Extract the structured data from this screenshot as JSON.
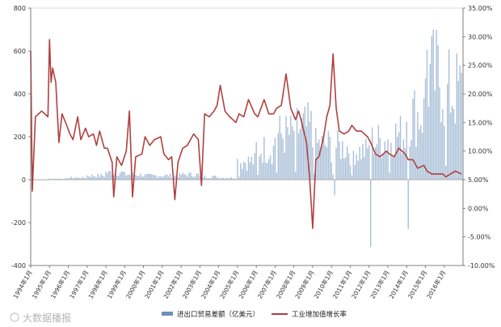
{
  "chart_data": {
    "type": "bar+line",
    "yleft": {
      "ylim": [
        -400,
        800
      ],
      "ticks": [
        "-400",
        "-200",
        "0",
        "200",
        "400",
        "600",
        "800"
      ]
    },
    "yright": {
      "ylim": [
        -10,
        35
      ],
      "ticks": [
        "-10.00%",
        "-5.00%",
        "0.00%",
        "5.00%",
        "10.00%",
        "15.00%",
        "20.00%",
        "25.00%",
        "30.00%",
        "35.00%"
      ]
    },
    "x_start": "1994-01",
    "x_end": "2016-12",
    "x_ticks": [
      "1994年1月",
      "1995年1月",
      "1996年1月",
      "1997年1月",
      "1998年1月",
      "1999年1月",
      "2000年1月",
      "2001年1月",
      "2002年1月",
      "2003年1月",
      "2004年1月",
      "2005年1月",
      "2006年1月",
      "2007年1月",
      "2008年1月",
      "2009年1月",
      "2010年1月",
      "2011年1月",
      "2012年1月",
      "2013年1月",
      "2014年1月",
      "2015年1月",
      "2016年1月"
    ],
    "series": [
      {
        "name": "进出口贸易差额（亿美元）",
        "type": "bar",
        "axis": "left",
        "color": "#a9bfd8",
        "annual_profile": [
          [
            1994,
            0
          ],
          [
            1995,
            5
          ],
          [
            1996,
            10
          ],
          [
            1997,
            20
          ],
          [
            1998,
            35
          ],
          [
            1999,
            25
          ],
          [
            2000,
            20
          ],
          [
            2001,
            20
          ],
          [
            2002,
            25
          ],
          [
            2003,
            15
          ],
          [
            2004,
            10
          ],
          [
            2005,
            90
          ],
          [
            2006,
            150
          ],
          [
            2007,
            220
          ],
          [
            2008,
            250
          ],
          [
            2009,
            170
          ],
          [
            2010,
            160
          ],
          [
            2011,
            140
          ],
          [
            2012,
            190
          ],
          [
            2013,
            220
          ],
          [
            2014,
            320
          ],
          [
            2015,
            500
          ],
          [
            2016,
            430
          ]
        ],
        "notable": [
          {
            "date": "2010-03",
            "value": -72
          },
          {
            "date": "2012-02",
            "value": -315
          },
          {
            "date": "2014-02",
            "value": -230
          },
          {
            "date": "2015-02",
            "value": 605
          }
        ]
      },
      {
        "name": "工业增加值增长率",
        "type": "line",
        "axis": "right",
        "color": "#b04040",
        "points": [
          [
            "1994-01",
            27.5
          ],
          [
            "1994-02",
            3.0
          ],
          [
            "1994-04",
            16.0
          ],
          [
            "1994-08",
            17.0
          ],
          [
            "1994-12",
            16.0
          ],
          [
            "1995-01",
            29.5
          ],
          [
            "1995-02",
            22.0
          ],
          [
            "1995-03",
            24.5
          ],
          [
            "1995-05",
            22.0
          ],
          [
            "1995-07",
            11.5
          ],
          [
            "1995-09",
            16.5
          ],
          [
            "1995-12",
            14.5
          ],
          [
            "1996-02",
            13.0
          ],
          [
            "1996-04",
            12.0
          ],
          [
            "1996-07",
            16.0
          ],
          [
            "1996-09",
            12.0
          ],
          [
            "1996-12",
            14.0
          ],
          [
            "1997-02",
            12.5
          ],
          [
            "1997-05",
            13.0
          ],
          [
            "1997-07",
            11.0
          ],
          [
            "1997-09",
            13.5
          ],
          [
            "1997-12",
            10.5
          ],
          [
            "1998-02",
            10.5
          ],
          [
            "1998-05",
            8.0
          ],
          [
            "1998-06",
            2.0
          ],
          [
            "1998-08",
            9.0
          ],
          [
            "1998-11",
            7.5
          ],
          [
            "1999-02",
            10.0
          ],
          [
            "1999-04",
            17.0
          ],
          [
            "1999-06",
            2.0
          ],
          [
            "1999-08",
            9.0
          ],
          [
            "1999-12",
            9.5
          ],
          [
            "2000-02",
            12.5
          ],
          [
            "2000-05",
            11.0
          ],
          [
            "2000-08",
            12.0
          ],
          [
            "2000-12",
            12.5
          ],
          [
            "2001-02",
            9.5
          ],
          [
            "2001-05",
            8.5
          ],
          [
            "2001-07",
            9.0
          ],
          [
            "2001-09",
            1.5
          ],
          [
            "2001-11",
            8.0
          ],
          [
            "2002-02",
            10.5
          ],
          [
            "2002-05",
            11.0
          ],
          [
            "2002-07",
            12.0
          ],
          [
            "2002-09",
            13.0
          ],
          [
            "2002-12",
            12.0
          ],
          [
            "2003-02",
            4.0
          ],
          [
            "2003-04",
            16.5
          ],
          [
            "2003-07",
            16.0
          ],
          [
            "2003-10",
            17.0
          ],
          [
            "2003-12",
            18.0
          ],
          [
            "2004-02",
            21.5
          ],
          [
            "2004-05",
            17.0
          ],
          [
            "2004-08",
            16.0
          ],
          [
            "2004-12",
            15.0
          ],
          [
            "2005-02",
            16.5
          ],
          [
            "2005-05",
            16.0
          ],
          [
            "2005-08",
            19.0
          ],
          [
            "2005-12",
            16.5
          ],
          [
            "2006-02",
            16.0
          ],
          [
            "2006-06",
            19.0
          ],
          [
            "2006-09",
            16.5
          ],
          [
            "2006-12",
            16.5
          ],
          [
            "2007-02",
            17.5
          ],
          [
            "2007-05",
            18.0
          ],
          [
            "2007-08",
            23.5
          ],
          [
            "2007-11",
            17.5
          ],
          [
            "2008-02",
            15.5
          ],
          [
            "2008-04",
            17.0
          ],
          [
            "2008-06",
            15.0
          ],
          [
            "2008-09",
            11.5
          ],
          [
            "2008-11",
            5.5
          ],
          [
            "2009-01",
            -3.5
          ],
          [
            "2009-03",
            8.5
          ],
          [
            "2009-05",
            9.0
          ],
          [
            "2009-08",
            12.5
          ],
          [
            "2009-10",
            16.0
          ],
          [
            "2009-12",
            18.0
          ],
          [
            "2010-02",
            27.0
          ],
          [
            "2010-04",
            17.5
          ],
          [
            "2010-06",
            13.5
          ],
          [
            "2010-09",
            13.0
          ],
          [
            "2010-12",
            13.5
          ],
          [
            "2011-02",
            14.5
          ],
          [
            "2011-05",
            13.5
          ],
          [
            "2011-08",
            13.5
          ],
          [
            "2011-12",
            12.5
          ],
          [
            "2012-02",
            11.5
          ],
          [
            "2012-05",
            9.5
          ],
          [
            "2012-08",
            9.0
          ],
          [
            "2012-12",
            10.0
          ],
          [
            "2013-02",
            9.5
          ],
          [
            "2013-05",
            9.0
          ],
          [
            "2013-08",
            10.5
          ],
          [
            "2013-12",
            9.5
          ],
          [
            "2014-02",
            8.5
          ],
          [
            "2014-05",
            8.5
          ],
          [
            "2014-08",
            7.0
          ],
          [
            "2014-12",
            7.5
          ],
          [
            "2015-02",
            6.5
          ],
          [
            "2015-05",
            6.0
          ],
          [
            "2015-08",
            6.0
          ],
          [
            "2015-12",
            6.0
          ],
          [
            "2016-02",
            5.5
          ],
          [
            "2016-05",
            6.0
          ],
          [
            "2016-08",
            6.5
          ],
          [
            "2016-12",
            6.0
          ]
        ]
      }
    ],
    "legend_position": "bottom",
    "grid": false
  },
  "watermark": "大数据播报"
}
